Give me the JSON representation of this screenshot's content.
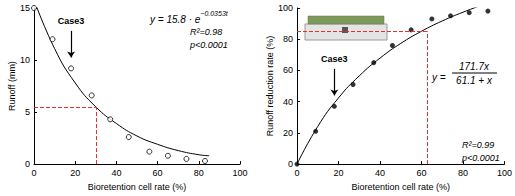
{
  "chart_data": [
    {
      "type": "scatter",
      "x_label": "Bioretention cell rate (%)",
      "y_label": "Runoff (mm)",
      "xlim": [
        0,
        100
      ],
      "xticks": [
        0,
        20,
        40,
        60,
        80,
        100
      ],
      "ylim": [
        0,
        15
      ],
      "yticks": [
        0,
        5,
        10,
        15
      ],
      "marker": "open circle",
      "color": "#000000",
      "points": {
        "x": [
          0,
          9,
          18,
          28,
          37,
          46,
          56,
          65,
          74,
          83
        ],
        "y": [
          15,
          12,
          9.2,
          6.6,
          4.3,
          2.6,
          1.2,
          0.8,
          0.5,
          0.3
        ]
      },
      "fit": {
        "x": [
          0,
          10,
          20,
          30,
          40,
          50,
          60,
          70,
          80,
          85
        ],
        "y": [
          15.8,
          11.1,
          7.8,
          5.5,
          3.9,
          2.7,
          1.9,
          1.3,
          0.9,
          0.8
        ]
      },
      "equation": {
        "text": "y = 15.8 · e",
        "superscript": "−0.0353t"
      },
      "r2_label": "R²=0.98",
      "p_label": "p<0.0001",
      "annotation": {
        "text": "Case3",
        "x": 18,
        "y": 9.2
      },
      "reference": {
        "x": 30,
        "y": 5.5,
        "color": "#e03030"
      }
    },
    {
      "type": "scatter",
      "x_label": "Bioretention cell rate (%)",
      "y_label": "Runoff reduction rate (%)",
      "xlim": [
        0,
        100
      ],
      "xticks": [
        0,
        20,
        40,
        60,
        80,
        100
      ],
      "ylim": [
        0,
        100
      ],
      "yticks": [
        0,
        20,
        40,
        60,
        80,
        100
      ],
      "marker": "filled circle",
      "color": "#000000",
      "points": {
        "x": [
          0,
          9,
          18,
          27,
          37,
          46,
          55,
          65,
          74,
          83,
          92
        ],
        "y": [
          0,
          21,
          37,
          51,
          65,
          76,
          86,
          93,
          95,
          97,
          98
        ]
      },
      "fit": {
        "x": [
          0,
          10,
          20,
          30,
          40,
          50,
          60,
          70,
          80,
          90
        ],
        "y": [
          0,
          24.1,
          42.4,
          56.5,
          67.9,
          77.3,
          85.1,
          91.7,
          97.3,
          102.3
        ]
      },
      "equation": {
        "prefix": "y =",
        "numerator": "171.7x",
        "denominator": "61.1 + x"
      },
      "r2_label": "R²=0.99",
      "p_label": "p<0.0001",
      "annotation": {
        "text": "Case3",
        "x": 18,
        "y": 37
      },
      "reference": {
        "x": 63,
        "y": 85,
        "color": "#e03030"
      }
    }
  ]
}
